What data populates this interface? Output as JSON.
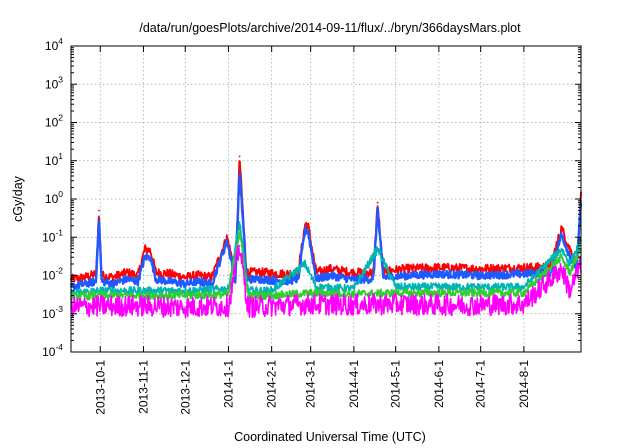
{
  "chart_data": {
    "type": "line",
    "title": "/data/run/goesPlots/archive/2014-09-11/flux/../bryn/366daysMars.plot",
    "xlabel": "Coordinated Universal Time (UTC)",
    "ylabel": "cGy/day",
    "y_scale": "log",
    "ylim": [
      0.0001,
      10000
    ],
    "xlim": [
      "2013-09-10",
      "2014-09-11"
    ],
    "grid": true,
    "x_ticks": [
      {
        "date": "2013-10-01",
        "label": "2013-10-1"
      },
      {
        "date": "2013-11-01",
        "label": "2013-11-1"
      },
      {
        "date": "2013-12-01",
        "label": "2013-12-1"
      },
      {
        "date": "2014-01-01",
        "label": "2014-1-1"
      },
      {
        "date": "2014-02-01",
        "label": "2014-2-1"
      },
      {
        "date": "2014-03-01",
        "label": "2014-3-1"
      },
      {
        "date": "2014-04-01",
        "label": "2014-4-1"
      },
      {
        "date": "2014-05-01",
        "label": "2014-5-1"
      },
      {
        "date": "2014-06-01",
        "label": "2014-6-1"
      },
      {
        "date": "2014-07-01",
        "label": "2014-7-1"
      },
      {
        "date": "2014-08-01",
        "label": "2014-8-1"
      }
    ],
    "y_ticks": [
      {
        "value": 0.0001,
        "base": "10",
        "exp": "-4"
      },
      {
        "value": 0.001,
        "base": "10",
        "exp": "-3"
      },
      {
        "value": 0.01,
        "base": "10",
        "exp": "-2"
      },
      {
        "value": 0.1,
        "base": "10",
        "exp": "-1"
      },
      {
        "value": 1,
        "base": "10",
        "exp": "0"
      },
      {
        "value": 10,
        "base": "10",
        "exp": "1"
      },
      {
        "value": 100,
        "base": "10",
        "exp": "2"
      },
      {
        "value": 1000,
        "base": "10",
        "exp": "3"
      },
      {
        "value": 10000,
        "base": "10",
        "exp": "4"
      }
    ],
    "series": [
      {
        "color": "#ff0000",
        "x": [
          "2013-09-10",
          "2013-09-20",
          "2013-09-28",
          "2013-09-30",
          "2013-10-02",
          "2013-10-10",
          "2013-10-20",
          "2013-10-28",
          "2013-11-02",
          "2013-11-06",
          "2013-11-10",
          "2013-11-20",
          "2013-12-01",
          "2013-12-10",
          "2013-12-20",
          "2013-12-31",
          "2014-01-06",
          "2014-01-09",
          "2014-01-14",
          "2014-01-25",
          "2014-02-10",
          "2014-02-20",
          "2014-02-25",
          "2014-02-27",
          "2014-03-05",
          "2014-03-15",
          "2014-03-30",
          "2014-04-15",
          "2014-04-18",
          "2014-04-22",
          "2014-05-10",
          "2014-06-01",
          "2014-07-01",
          "2014-08-01",
          "2014-08-20",
          "2014-08-28",
          "2014-09-02",
          "2014-09-08",
          "2014-09-11"
        ],
        "y": [
          0.008,
          0.009,
          0.011,
          0.5,
          0.01,
          0.009,
          0.012,
          0.01,
          0.05,
          0.045,
          0.012,
          0.011,
          0.009,
          0.01,
          0.009,
          0.1,
          0.012,
          13,
          0.012,
          0.012,
          0.011,
          0.012,
          0.22,
          0.22,
          0.012,
          0.015,
          0.012,
          0.012,
          0.8,
          0.013,
          0.015,
          0.016,
          0.015,
          0.016,
          0.017,
          0.18,
          0.06,
          0.02,
          1.2
        ]
      },
      {
        "color": "#1e5aff",
        "x": [
          "2013-09-10",
          "2013-09-20",
          "2013-09-28",
          "2013-09-30",
          "2013-10-02",
          "2013-10-10",
          "2013-10-20",
          "2013-10-28",
          "2013-11-02",
          "2013-11-06",
          "2013-11-10",
          "2013-11-20",
          "2013-12-01",
          "2013-12-10",
          "2013-12-20",
          "2013-12-31",
          "2014-01-06",
          "2014-01-09",
          "2014-01-14",
          "2014-01-25",
          "2014-02-10",
          "2014-02-20",
          "2014-02-25",
          "2014-02-27",
          "2014-03-05",
          "2014-03-15",
          "2014-03-30",
          "2014-04-15",
          "2014-04-18",
          "2014-04-22",
          "2014-05-10",
          "2014-06-01",
          "2014-07-01",
          "2014-08-01",
          "2014-08-20",
          "2014-08-28",
          "2014-09-02",
          "2014-09-08",
          "2014-09-11"
        ],
        "y": [
          0.005,
          0.006,
          0.007,
          0.35,
          0.007,
          0.006,
          0.008,
          0.007,
          0.03,
          0.03,
          0.008,
          0.007,
          0.006,
          0.007,
          0.006,
          0.08,
          0.008,
          6,
          0.008,
          0.008,
          0.007,
          0.008,
          0.15,
          0.15,
          0.008,
          0.01,
          0.008,
          0.008,
          0.55,
          0.009,
          0.01,
          0.011,
          0.01,
          0.011,
          0.012,
          0.12,
          0.04,
          0.015,
          0.9
        ]
      },
      {
        "color": "#00b4b4",
        "x": [
          "2013-09-10",
          "2013-10-01",
          "2013-11-01",
          "2013-12-01",
          "2014-01-01",
          "2014-01-09",
          "2014-01-15",
          "2014-02-01",
          "2014-02-25",
          "2014-03-05",
          "2014-04-01",
          "2014-04-18",
          "2014-05-01",
          "2014-06-01",
          "2014-07-01",
          "2014-08-01",
          "2014-08-28",
          "2014-09-03",
          "2014-09-11"
        ],
        "y": [
          0.0035,
          0.004,
          0.004,
          0.004,
          0.0045,
          0.25,
          0.004,
          0.004,
          0.02,
          0.005,
          0.0045,
          0.05,
          0.005,
          0.005,
          0.005,
          0.005,
          0.05,
          0.02,
          0.08
        ]
      },
      {
        "color": "#33cc33",
        "x": [
          "2013-09-10",
          "2013-10-01",
          "2013-11-01",
          "2013-12-01",
          "2014-01-01",
          "2014-01-09",
          "2014-01-15",
          "2014-02-01",
          "2014-03-01",
          "2014-04-01",
          "2014-05-01",
          "2014-06-01",
          "2014-07-01",
          "2014-08-01",
          "2014-08-28",
          "2014-09-03",
          "2014-09-11"
        ],
        "y": [
          0.0028,
          0.003,
          0.003,
          0.003,
          0.0032,
          0.15,
          0.003,
          0.003,
          0.0035,
          0.0033,
          0.0035,
          0.0035,
          0.0035,
          0.0035,
          0.03,
          0.012,
          0.05
        ]
      },
      {
        "color": "#ff00ff",
        "x": [
          "2013-09-10",
          "2013-10-01",
          "2013-11-01",
          "2013-12-01",
          "2014-01-01",
          "2014-01-09",
          "2014-01-15",
          "2014-02-01",
          "2014-03-01",
          "2014-04-01",
          "2014-05-01",
          "2014-06-01",
          "2014-07-01",
          "2014-08-01",
          "2014-08-28",
          "2014-09-03",
          "2014-09-11"
        ],
        "y": [
          0.0015,
          0.0016,
          0.0016,
          0.0015,
          0.0016,
          0.06,
          0.0015,
          0.0016,
          0.0018,
          0.0017,
          0.0018,
          0.0017,
          0.0017,
          0.0018,
          0.015,
          0.004,
          0.02
        ]
      }
    ]
  }
}
